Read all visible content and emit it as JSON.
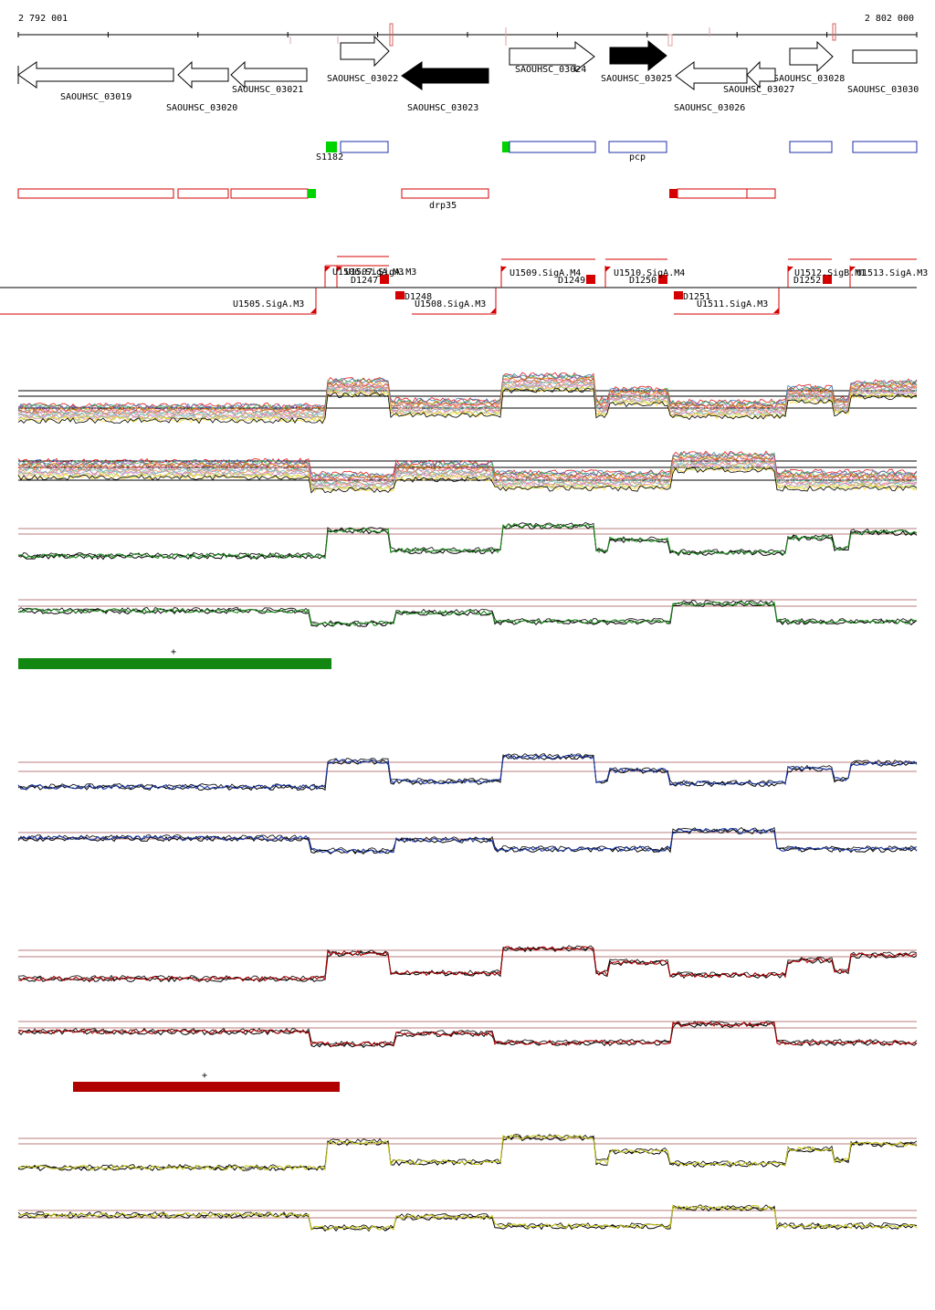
{
  "ruler": {
    "start_label": "2 792 001",
    "end_label": "2 802 000"
  },
  "genes_forward": [
    {
      "name": "SAOUHSC_03022",
      "filled": false
    },
    {
      "name": "SAOUHSC_03024",
      "filled": false
    },
    {
      "name": "SAOUHSC_03025",
      "filled": true
    },
    {
      "name": "SAOUHSC_03028",
      "filled": false
    },
    {
      "name": "SAOUHSC_03030",
      "filled": false
    }
  ],
  "genes_reverse": [
    {
      "name": "SAOUHSC_03019",
      "filled": false
    },
    {
      "name": "SAOUHSC_03020",
      "filled": false
    },
    {
      "name": "SAOUHSC_03021",
      "filled": false
    },
    {
      "name": "SAOUHSC_03023",
      "filled": true
    },
    {
      "name": "SAOUHSC_03026",
      "filled": false
    },
    {
      "name": "SAOUHSC_03027",
      "filled": false
    }
  ],
  "blue_features": [
    {
      "label": "S1182"
    },
    {
      "label": ""
    },
    {
      "label": "pcp"
    },
    {
      "label": ""
    },
    {
      "label": ""
    }
  ],
  "red_features": [
    {
      "label": ""
    },
    {
      "label": ""
    },
    {
      "label": ""
    },
    {
      "label": "drp35"
    },
    {
      "label": ""
    },
    {
      "label": ""
    }
  ],
  "utr_labels_top": [
    "U1506.SigA.M3",
    "U1507.SigA.M3",
    "U1509.SigA.M4",
    "U1510.SigA.M4",
    "U1512.SigB.M1",
    "U1513.SigA.M3"
  ],
  "utr_labels_bottom": [
    "U1505.SigA.M3",
    "U1508.SigA.M3",
    "U1511.SigA.M3"
  ],
  "d_labels": [
    "D1247",
    "D1248",
    "D1249",
    "D1250",
    "D1251",
    "D1252"
  ],
  "colors": {
    "gene_outline": "#000000",
    "blue_feature": "#1c2fa8",
    "red_feature": "#d40000",
    "green_marker": "#00d400",
    "track_green": "#1a8a1a",
    "track_blue": "#1c3aa8",
    "track_red": "#b00000",
    "track_yellow": "#c8c81e",
    "thresholds": "#a05050"
  },
  "segment_bars": [
    {
      "label": "+",
      "color": "#128712"
    },
    {
      "label": "+",
      "color": "#b00000"
    }
  ]
}
